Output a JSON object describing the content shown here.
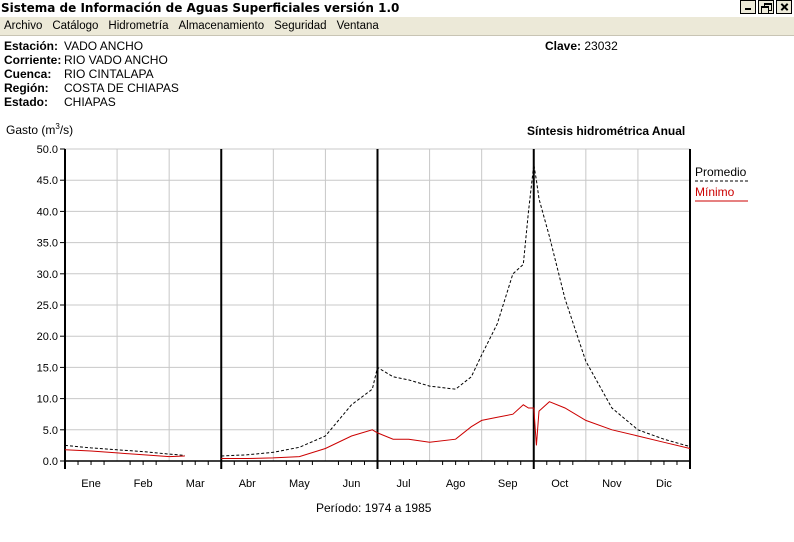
{
  "window": {
    "title": "Sistema de Información de Aguas Superficiales  versión 1.0",
    "buttons": [
      "_",
      "□",
      "×"
    ]
  },
  "menu": [
    "Archivo",
    "Catálogo",
    "Hidrometría",
    "Almacenamiento",
    "Seguridad",
    "Ventana"
  ],
  "station": {
    "fields": [
      {
        "label": "Estación:",
        "value": "VADO ANCHO"
      },
      {
        "label": "Corriente:",
        "value": "RIO VADO ANCHO"
      },
      {
        "label": "Cuenca:",
        "value": "RIO CINTALAPA"
      },
      {
        "label": "Región:",
        "value": "COSTA DE CHIAPAS"
      },
      {
        "label": "Estado:",
        "value": "CHIAPAS"
      }
    ],
    "clave_label": "Clave:",
    "clave_value": "23032"
  },
  "ylabel_prefix": "Gasto (m",
  "ylabel_sup": "3",
  "ylabel_suffix": "/s)",
  "synthesis_title": "Síntesis hidrométrica   Anual",
  "periodo": "Período:  1974 a 1985",
  "chart_data": {
    "type": "line",
    "xlabel": "",
    "ylabel": "Gasto (m3/s)",
    "ylim": [
      0,
      50
    ],
    "yticks": [
      0.0,
      5.0,
      10.0,
      15.0,
      20.0,
      25.0,
      30.0,
      35.0,
      40.0,
      45.0,
      50.0
    ],
    "ytick_labels": [
      "0.0",
      "5.0",
      "10.0",
      "15.0",
      "20.0",
      "25.0",
      "30.0",
      "35.0",
      "40.0",
      "45.0",
      "50.0"
    ],
    "categories": [
      "Ene",
      "Feb",
      "Mar",
      "Abr",
      "May",
      "Jun",
      "Jul",
      "Ago",
      "Sep",
      "Oct",
      "Nov",
      "Dic"
    ],
    "grid": true,
    "legend_placement": "right",
    "series": [
      {
        "name": "Promedio",
        "color": "#000000",
        "style": "dashed",
        "points": [
          [
            0.0,
            2.5
          ],
          [
            0.5,
            2.1
          ],
          [
            1.0,
            1.8
          ],
          [
            1.5,
            1.5
          ],
          [
            2.0,
            1.1
          ],
          [
            2.3,
            0.9
          ],
          [
            3.0,
            0.8
          ],
          [
            3.5,
            1.0
          ],
          [
            4.0,
            1.4
          ],
          [
            4.5,
            2.2
          ],
          [
            5.0,
            4.0
          ],
          [
            5.5,
            9.0
          ],
          [
            5.9,
            11.5
          ],
          [
            6.0,
            15.0
          ],
          [
            6.3,
            13.5
          ],
          [
            6.6,
            13.0
          ],
          [
            7.0,
            12.0
          ],
          [
            7.5,
            11.5
          ],
          [
            7.8,
            13.5
          ],
          [
            8.0,
            17.0
          ],
          [
            8.3,
            22.0
          ],
          [
            8.6,
            30.0
          ],
          [
            8.8,
            31.5
          ],
          [
            8.9,
            40.0
          ],
          [
            9.0,
            47.5
          ],
          [
            9.05,
            45.0
          ],
          [
            9.1,
            42.0
          ],
          [
            9.3,
            36.0
          ],
          [
            9.6,
            26.0
          ],
          [
            10.0,
            16.0
          ],
          [
            10.5,
            8.5
          ],
          [
            11.0,
            5.0
          ],
          [
            11.5,
            3.5
          ],
          [
            12.0,
            2.3
          ]
        ]
      },
      {
        "name": "Mínimo",
        "color": "#cc0000",
        "style": "solid",
        "points": [
          [
            0.0,
            1.8
          ],
          [
            0.5,
            1.6
          ],
          [
            1.0,
            1.3
          ],
          [
            1.5,
            1.0
          ],
          [
            2.0,
            0.7
          ],
          [
            2.3,
            0.8
          ],
          [
            3.0,
            0.4
          ],
          [
            3.5,
            0.4
          ],
          [
            4.0,
            0.5
          ],
          [
            4.5,
            0.7
          ],
          [
            5.0,
            2.0
          ],
          [
            5.5,
            4.0
          ],
          [
            5.9,
            5.0
          ],
          [
            6.0,
            4.5
          ],
          [
            6.3,
            3.5
          ],
          [
            6.6,
            3.5
          ],
          [
            7.0,
            3.0
          ],
          [
            7.5,
            3.5
          ],
          [
            7.8,
            5.5
          ],
          [
            8.0,
            6.5
          ],
          [
            8.3,
            7.0
          ],
          [
            8.6,
            7.5
          ],
          [
            8.8,
            9.0
          ],
          [
            8.9,
            8.5
          ],
          [
            9.0,
            8.5
          ],
          [
            9.05,
            2.5
          ],
          [
            9.1,
            8.0
          ],
          [
            9.3,
            9.5
          ],
          [
            9.6,
            8.5
          ],
          [
            10.0,
            6.5
          ],
          [
            10.5,
            5.0
          ],
          [
            11.0,
            4.0
          ],
          [
            11.5,
            3.0
          ],
          [
            12.0,
            2.0
          ]
        ]
      }
    ]
  }
}
